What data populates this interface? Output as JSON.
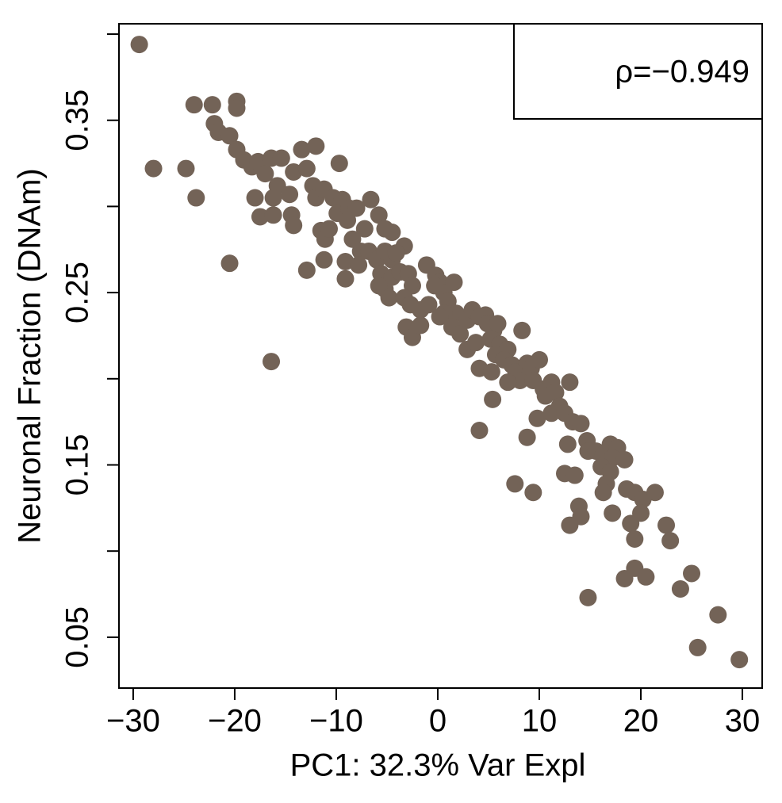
{
  "chart_data": {
    "type": "scatter",
    "xlabel": "PC1: 32.3% Var Expl",
    "ylabel": "Neuronal Fraction (DNAm)",
    "annotation": "ρ=−0.949",
    "color": "#736357",
    "xlim": [
      -31.4,
      31.95
    ],
    "ylim": [
      0.0205,
      0.406
    ],
    "xticks": [
      {
        "value": -30,
        "label": "−30"
      },
      {
        "value": -20,
        "label": "−20"
      },
      {
        "value": -10,
        "label": "−10"
      },
      0,
      10,
      20,
      30
    ],
    "yticks": [
      0.05,
      0.15,
      0.25,
      0.35
    ],
    "yminorticks": [
      0.1,
      0.2,
      0.3,
      0.4
    ],
    "x": [
      -29.4,
      -28.0,
      -24.8,
      -23.8,
      -24.0,
      -22.2,
      -19.8,
      -19.8,
      -22.0,
      -21.6,
      -20.5,
      -19.8,
      -19.1,
      -18.3,
      -17.7,
      -17.0,
      -16.4,
      -15.4,
      -15.8,
      -16.2,
      -18.0,
      -17.5,
      -16.2,
      -14.6,
      -14.4,
      -14.2,
      -13.4,
      -12.0,
      -14.2,
      -12.9,
      -12.3,
      -12.0,
      -11.2,
      -9.7,
      -10.3,
      -9.4,
      -9.9,
      -8.75,
      -8.0,
      -8.9,
      -11.5,
      -11.1,
      -10.7,
      -20.5,
      -12.9,
      -11.2,
      -16.4,
      -6.6,
      -5.8,
      -5.2,
      -4.5,
      -3.3,
      -8.4,
      -7.6,
      -9.1,
      -9.1,
      -6.8,
      -6.0,
      -5.2,
      -4.5,
      -5.6,
      -4.5,
      -5.2,
      -5.8,
      -4.8,
      -3.7,
      -2.9,
      -2.5,
      -3.3,
      -2.7,
      -1.7,
      -3.1,
      -2.5,
      -1.7,
      -1.1,
      -0.2,
      0.2,
      0.6,
      1.6,
      1.0,
      1.8,
      0.6,
      0.2,
      1.4,
      2.2,
      2.9,
      3.4,
      4.1,
      4.7,
      2.9,
      3.75,
      4.1,
      4.9,
      5.5,
      5.9,
      5.2,
      6.1,
      6.9,
      5.7,
      6.5,
      5.3,
      7.3,
      7.7,
      8.1,
      6.9,
      8.3,
      8.8,
      9.2,
      10.0,
      9.4,
      10.4,
      11.2,
      11.6,
      10.6,
      11.2,
      9.8,
      12.0,
      12.5,
      13.0,
      13.3,
      14.1,
      12.8,
      14.7,
      14.8,
      15.6,
      16.3,
      17.0,
      17.7,
      17.2,
      18.4,
      16.1,
      17.0,
      16.6,
      16.3,
      18.6,
      19.4,
      20.2,
      21.4,
      17.2,
      19.0,
      20.0,
      19.4,
      22.5,
      22.9,
      12.5,
      13.5,
      13.9,
      14.1,
      13.0,
      8.8,
      7.6,
      9.4,
      4.1,
      5.4,
      14.8,
      18.4,
      19.4,
      20.5,
      23.9,
      25.0,
      27.6,
      25.6,
      29.7,
      -0.9,
      -0.3,
      -4.1,
      -7.2,
      -7.8
    ],
    "values": [
      0.394,
      0.322,
      0.322,
      0.305,
      0.359,
      0.359,
      0.361,
      0.357,
      0.348,
      0.343,
      0.341,
      0.333,
      0.327,
      0.323,
      0.326,
      0.319,
      0.328,
      0.328,
      0.312,
      0.305,
      0.305,
      0.294,
      0.295,
      0.307,
      0.295,
      0.289,
      0.333,
      0.335,
      0.32,
      0.322,
      0.312,
      0.305,
      0.31,
      0.325,
      0.305,
      0.304,
      0.296,
      0.299,
      0.299,
      0.292,
      0.286,
      0.281,
      0.287,
      0.267,
      0.263,
      0.269,
      0.21,
      0.304,
      0.295,
      0.287,
      0.285,
      0.277,
      0.281,
      0.274,
      0.268,
      0.258,
      0.274,
      0.269,
      0.274,
      0.269,
      0.261,
      0.259,
      0.252,
      0.254,
      0.247,
      0.262,
      0.261,
      0.254,
      0.247,
      0.243,
      0.24,
      0.23,
      0.224,
      0.231,
      0.266,
      0.26,
      0.256,
      0.25,
      0.256,
      0.245,
      0.238,
      0.238,
      0.236,
      0.23,
      0.226,
      0.234,
      0.24,
      0.236,
      0.237,
      0.217,
      0.221,
      0.206,
      0.232,
      0.228,
      0.232,
      0.223,
      0.22,
      0.217,
      0.214,
      0.211,
      0.204,
      0.208,
      0.204,
      0.199,
      0.198,
      0.228,
      0.209,
      0.206,
      0.211,
      0.199,
      0.194,
      0.198,
      0.192,
      0.19,
      0.18,
      0.177,
      0.184,
      0.18,
      0.198,
      0.175,
      0.174,
      0.162,
      0.164,
      0.158,
      0.158,
      0.156,
      0.162,
      0.16,
      0.154,
      0.153,
      0.149,
      0.146,
      0.139,
      0.134,
      0.136,
      0.134,
      0.13,
      0.134,
      0.122,
      0.116,
      0.122,
      0.107,
      0.115,
      0.106,
      0.145,
      0.144,
      0.126,
      0.12,
      0.115,
      0.166,
      0.139,
      0.134,
      0.17,
      0.188,
      0.073,
      0.084,
      0.09,
      0.085,
      0.078,
      0.087,
      0.063,
      0.044,
      0.037,
      0.243,
      0.254,
      0.273,
      0.287,
      0.266
    ]
  }
}
